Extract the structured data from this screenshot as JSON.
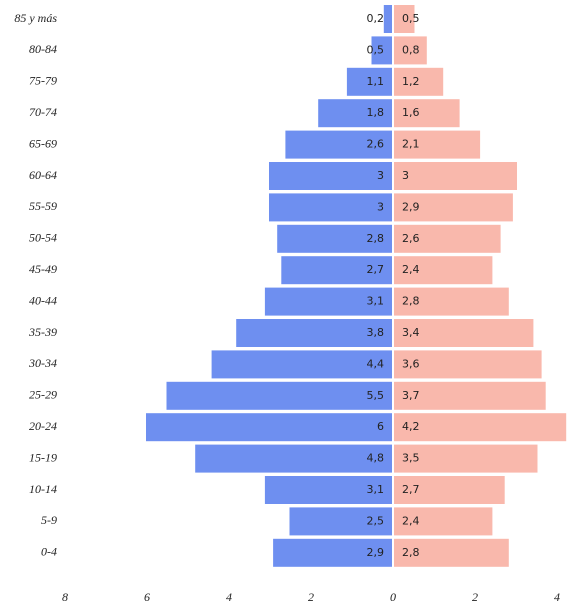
{
  "chart_data": {
    "type": "pyramid",
    "categories": [
      "85 y más",
      "80-84",
      "75-79",
      "70-74",
      "65-69",
      "60-64",
      "55-59",
      "50-54",
      "45-49",
      "40-44",
      "35-39",
      "30-34",
      "25-29",
      "20-24",
      "15-19",
      "10-14",
      "5-9",
      "0-4"
    ],
    "series": [
      {
        "color": "#6e8ff0",
        "side": "left",
        "values": [
          0.2,
          0.5,
          1.1,
          1.8,
          2.6,
          3,
          3,
          2.8,
          2.7,
          3.1,
          3.8,
          4.4,
          5.5,
          6,
          4.8,
          3.1,
          2.5,
          2.9
        ],
        "value_labels": [
          "0,2",
          "0,5",
          "1,1",
          "1,8",
          "2,6",
          "3",
          "3",
          "2,8",
          "2,7",
          "3,1",
          "3,8",
          "4,4",
          "5,5",
          "6",
          "4,8",
          "3,1",
          "2,5",
          "2,9"
        ]
      },
      {
        "color": "#f9b8ac",
        "side": "right",
        "values": [
          0.5,
          0.8,
          1.2,
          1.6,
          2.1,
          3,
          2.9,
          2.6,
          2.4,
          2.8,
          3.4,
          3.6,
          3.7,
          4.2,
          3.5,
          2.7,
          2.4,
          2.8
        ],
        "value_labels": [
          "0,5",
          "0,8",
          "1,2",
          "1,6",
          "2,1",
          "3",
          "2,9",
          "2,6",
          "2,4",
          "2,8",
          "3,4",
          "3,6",
          "3,7",
          "4,2",
          "3,5",
          "2,7",
          "2,4",
          "2,8"
        ]
      }
    ],
    "xlim": [
      -8,
      4
    ],
    "xticks": [
      {
        "value": -8,
        "label": "8"
      },
      {
        "value": -6,
        "label": "6"
      },
      {
        "value": -4,
        "label": "4"
      },
      {
        "value": -2,
        "label": "2"
      },
      0,
      2,
      4
    ]
  }
}
